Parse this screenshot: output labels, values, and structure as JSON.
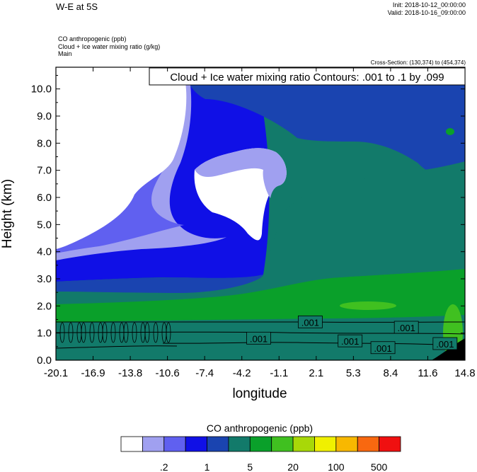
{
  "header": {
    "title": "W-E at 5S",
    "init": "Init: 2018-10-12_00:00:00",
    "valid": "Valid: 2018-10-16_09:00:00",
    "fields": [
      "CO anthropogenic   (ppb)",
      "Cloud + Ice water mixing ratio   (g/kg)",
      "Main"
    ],
    "cross_section": "Cross-Section: (130,374) to (454,374)"
  },
  "chart_data": {
    "type": "heatmap",
    "title": "Cloud + Ice water mixing ratio Contours: .001 to .1 by .099",
    "xlabel": "longitude",
    "ylabel": "Height (km)",
    "x_ticks": [
      "-20.1",
      "-16.9",
      "-13.8",
      "-10.6",
      "-7.4",
      "-4.2",
      "-1.1",
      "2.1",
      "5.3",
      "8.4",
      "11.6",
      "14.8"
    ],
    "y_ticks": [
      "0.0",
      "1.0",
      "2.0",
      "3.0",
      "4.0",
      "5.0",
      "6.0",
      "7.0",
      "8.0",
      "9.0",
      "10.0"
    ],
    "xlim": [
      -20.1,
      14.8
    ],
    "ylim": [
      0,
      10.8
    ],
    "contour_labels": [
      {
        "text": ".001",
        "x": 1.6,
        "y": 1.4
      },
      {
        "text": ".001",
        "x": -2.8,
        "y": 0.8
      },
      {
        "text": ".001",
        "x": 5.0,
        "y": 0.7
      },
      {
        "text": ".001",
        "x": 7.8,
        "y": 0.45
      },
      {
        "text": ".001",
        "x": 9.8,
        "y": 1.2
      },
      {
        "text": ".001",
        "x": 13.1,
        "y": 0.6
      }
    ],
    "colorbar": {
      "title": "CO anthropogenic  (ppb)",
      "colors": [
        "#ffffff",
        "#a0a0f0",
        "#6060f0",
        "#1010e6",
        "#1a44b0",
        "#127a6a",
        "#0aa02a",
        "#40c020",
        "#a8d808",
        "#f0f000",
        "#f8b800",
        "#f86810",
        "#f01010"
      ],
      "labels": [
        ".2",
        "1",
        "5",
        "20",
        "100",
        "500"
      ]
    }
  }
}
